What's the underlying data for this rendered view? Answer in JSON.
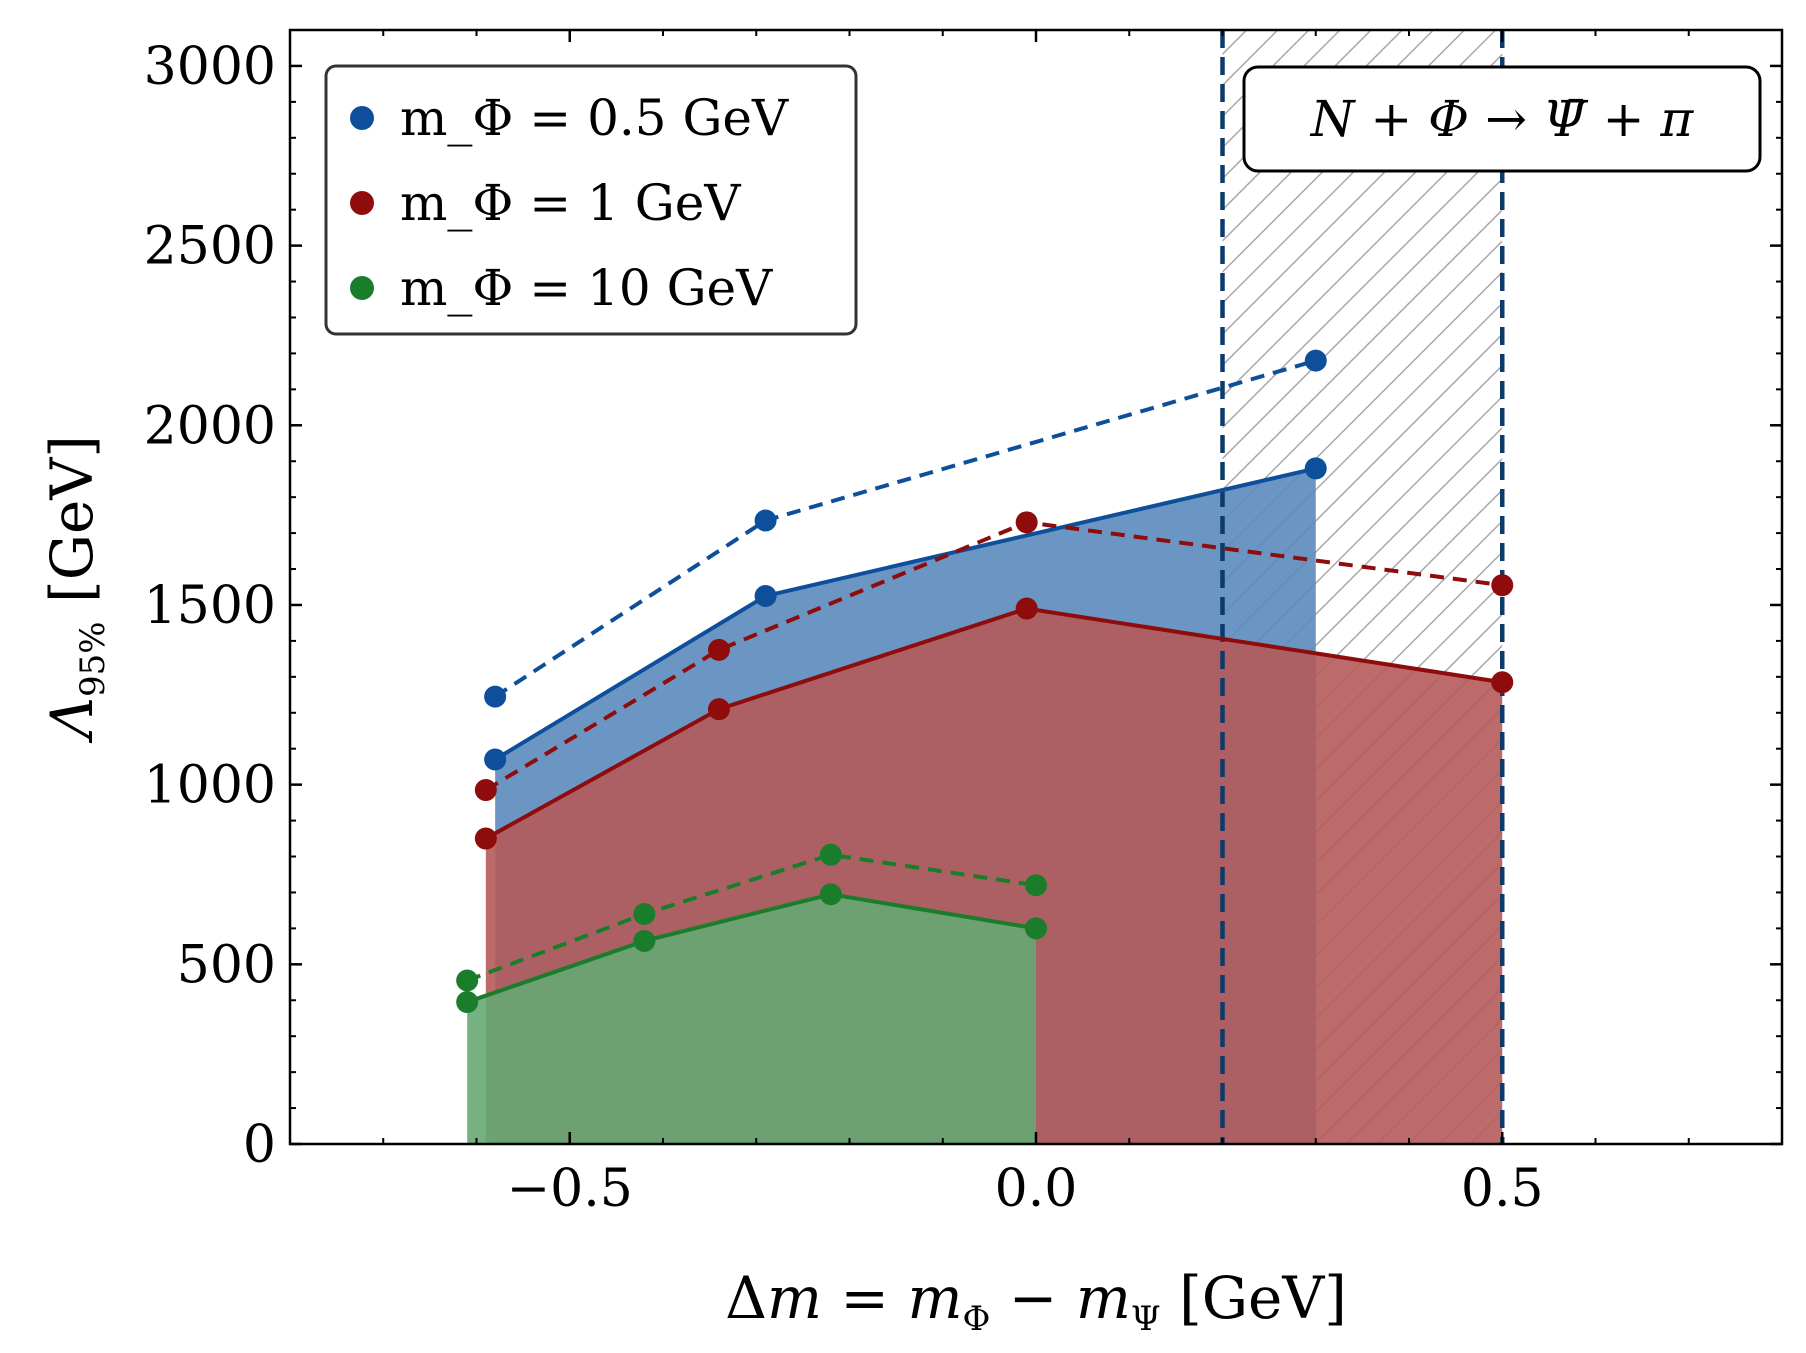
{
  "chart_data": {
    "type": "line",
    "title": "",
    "xlabel": "Δm = m_Φ − m_Ψ [GeV]",
    "ylabel": "Λ_95% [GeV]",
    "xlim": [
      -0.8,
      0.8
    ],
    "ylim": [
      0,
      3100
    ],
    "xticks": [
      -0.5,
      0.0,
      0.5
    ],
    "xtick_labels": [
      "−0.5",
      "0.0",
      "0.5"
    ],
    "yticks": [
      0,
      500,
      1000,
      1500,
      2000,
      2500,
      3000
    ],
    "ytick_labels": [
      "0",
      "500",
      "1000",
      "1500",
      "2000",
      "2500",
      "3000"
    ],
    "legend_position": "top-left",
    "annotation": "N + Φ → Ψ̄ + π",
    "excluded_band": {
      "x_range": [
        0.2,
        0.5
      ],
      "style": "hatched",
      "border_color": "#0b3a6b"
    },
    "series": [
      {
        "name": "m_Φ = 0.5 GeV",
        "legend_label": "m_Φ = 0.5 GeV",
        "color": "#0d4f9a",
        "fill_color": "#5b8bbd",
        "x": [
          -0.58,
          -0.29,
          0.3
        ],
        "solid": [
          1070,
          1525,
          1880
        ],
        "dashed": [
          1245,
          1735,
          2180
        ]
      },
      {
        "name": "m_Φ = 1 GeV",
        "legend_label": "m_Φ = 1 GeV",
        "color": "#8e0c0c",
        "fill_color": "#b55a5a",
        "x": [
          -0.59,
          -0.34,
          -0.01,
          0.5
        ],
        "solid": [
          850,
          1210,
          1490,
          1285
        ],
        "dashed": [
          985,
          1375,
          1730,
          1555
        ]
      },
      {
        "name": "m_Φ = 10 GeV",
        "legend_label": "m_Φ = 10 GeV",
        "color": "#1a7d2b",
        "fill_color": "#66a873",
        "x": [
          -0.61,
          -0.42,
          -0.22,
          0.0
        ],
        "solid": [
          395,
          565,
          695,
          600
        ],
        "dashed": [
          455,
          640,
          805,
          720
        ]
      }
    ]
  }
}
